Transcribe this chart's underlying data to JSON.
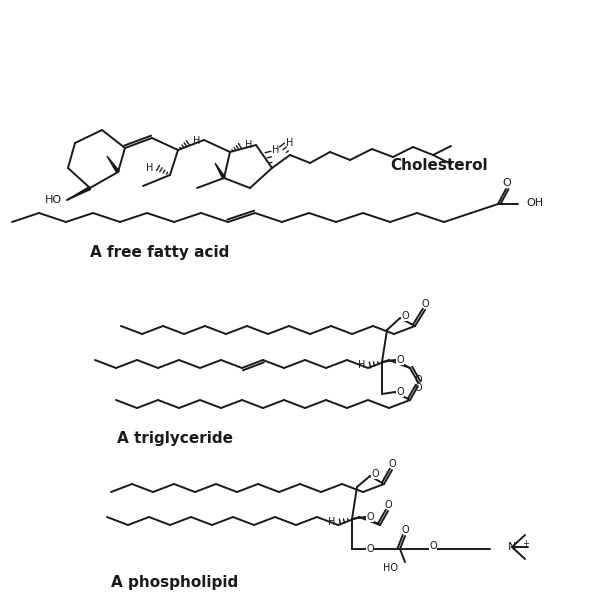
{
  "bg": "#ffffff",
  "lc": "#1a1a1a",
  "lw": 1.4,
  "labels": {
    "cholesterol": "Cholesterol",
    "fatty_acid": "A free fatty acid",
    "triglyceride": "A triglyceride",
    "phospholipid": "A phospholipid"
  }
}
